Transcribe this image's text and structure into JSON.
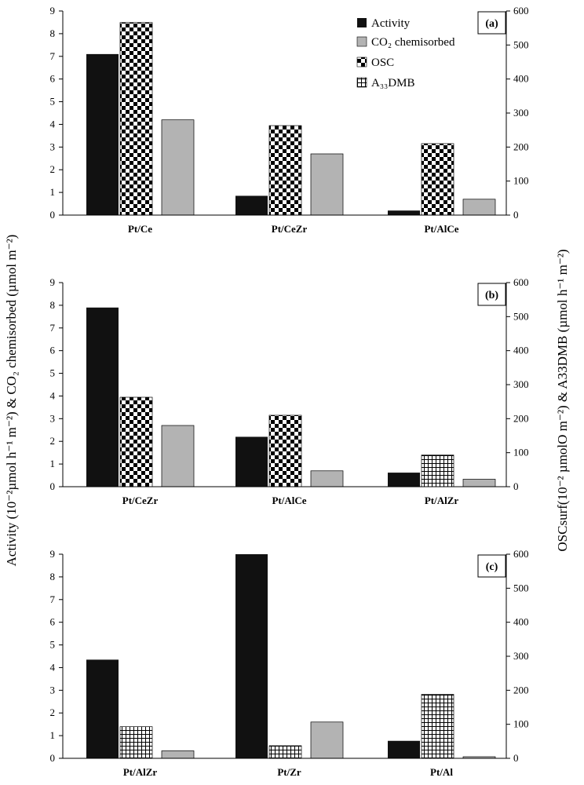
{
  "chart_data": {
    "type": "bar",
    "left_axis_label": "Activity (10⁻²µmol h⁻¹ m⁻²) & CO₂ chemisorbed (µmol m⁻²)",
    "right_axis_label": "OSCsurf(10⁻² µmolO m⁻²) & A33DMB (µmol h⁻¹ m⁻²)",
    "left_ylim": [
      0,
      9
    ],
    "left_ticks": [
      "0",
      "1",
      "2",
      "3",
      "4",
      "5",
      "6",
      "7",
      "8",
      "9"
    ],
    "right_ylim": [
      0,
      600
    ],
    "right_ticks": [
      "0",
      "100",
      "200",
      "300",
      "400",
      "500",
      "600"
    ],
    "legend": [
      {
        "key": "activity",
        "label": "Activity",
        "axis": "left"
      },
      {
        "key": "co2",
        "label": "CO₂ chemisorbed",
        "axis": "left"
      },
      {
        "key": "osc",
        "label": "OSC",
        "axis": "right"
      },
      {
        "key": "a33dmb",
        "label": "A₃₃DMB",
        "axis": "right"
      }
    ],
    "colors": {
      "activity": "#111111",
      "co2": "#b3b3b3",
      "pattern_fill": "#ffffff",
      "pattern_ink": "#000000"
    },
    "panels": [
      {
        "label": "(a)",
        "categories": [
          "Pt/Ce",
          "Pt/CeZr",
          "Pt/AlCe"
        ],
        "bars": [
          [
            {
              "key": "activity",
              "value": 7.1
            },
            {
              "key": "osc",
              "value": 566
            },
            {
              "key": "co2",
              "value": 4.2
            }
          ],
          [
            {
              "key": "activity",
              "value": 0.85
            },
            {
              "key": "osc",
              "value": 263
            },
            {
              "key": "co2",
              "value": 2.7
            }
          ],
          [
            {
              "key": "activity",
              "value": 0.2
            },
            {
              "key": "osc",
              "value": 210
            },
            {
              "key": "co2",
              "value": 0.7
            }
          ]
        ]
      },
      {
        "label": "(b)",
        "categories": [
          "Pt/CeZr",
          "Pt/AlCe",
          "Pt/AlZr"
        ],
        "bars": [
          [
            {
              "key": "activity",
              "value": 7.9
            },
            {
              "key": "osc",
              "value": 263
            },
            {
              "key": "co2",
              "value": 2.7
            }
          ],
          [
            {
              "key": "activity",
              "value": 2.2
            },
            {
              "key": "osc",
              "value": 210
            },
            {
              "key": "co2",
              "value": 0.7
            }
          ],
          [
            {
              "key": "activity",
              "value": 0.62
            },
            {
              "key": "a33dmb",
              "value": 93
            },
            {
              "key": "co2",
              "value": 0.33
            }
          ]
        ]
      },
      {
        "label": "(c)",
        "categories": [
          "Pt/AlZr",
          "Pt/Zr",
          "Pt/Al"
        ],
        "bars": [
          [
            {
              "key": "activity",
              "value": 4.35
            },
            {
              "key": "a33dmb",
              "value": 93
            },
            {
              "key": "co2",
              "value": 0.33
            }
          ],
          [
            {
              "key": "activity",
              "value": 9.0
            },
            {
              "key": "a33dmb",
              "value": 37
            },
            {
              "key": "co2",
              "value": 1.6
            }
          ],
          [
            {
              "key": "activity",
              "value": 0.77
            },
            {
              "key": "a33dmb",
              "value": 188
            },
            {
              "key": "co2",
              "value": 0.07
            }
          ]
        ]
      }
    ]
  }
}
